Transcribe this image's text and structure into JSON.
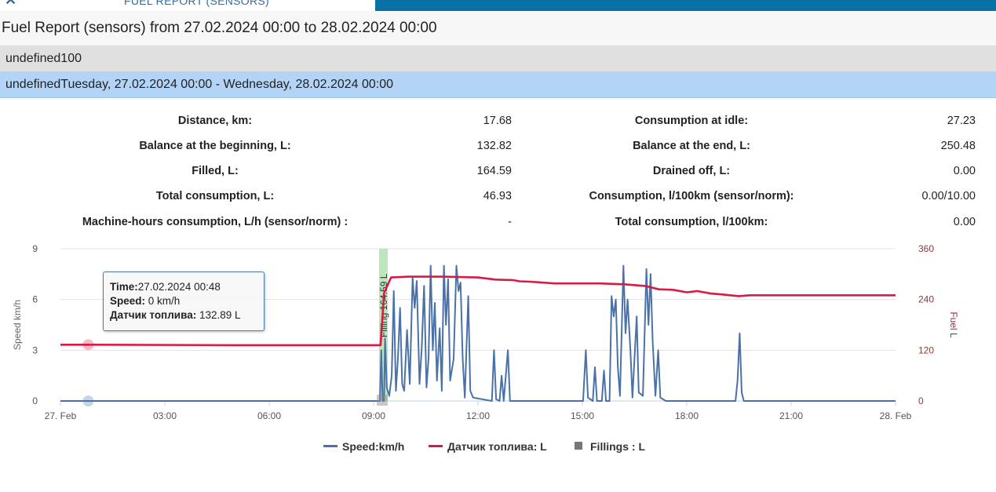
{
  "header": {
    "close_icon": "close-icon",
    "tab_title": "FUEL REPORT (SENSORS)",
    "accent_color": "#0b70a6"
  },
  "report": {
    "title": "Fuel Report (sensors) from 27.02.2024 00:00 to 28.02.2024 00:00",
    "group_row": "undefined100",
    "period_row": "undefinedTuesday, 27.02.2024 00:00 - Wednesday, 28.02.2024 00:00"
  },
  "stats": {
    "left": [
      {
        "label": "Distance, km:",
        "value": "17.68"
      },
      {
        "label": "Balance at the beginning, L:",
        "value": "132.82"
      },
      {
        "label": "Filled, L:",
        "value": "164.59"
      },
      {
        "label": "Total consumption, L:",
        "value": "46.93"
      },
      {
        "label": "Machine-hours consumption, L/h (sensor/norm) :",
        "value": "-"
      }
    ],
    "right": [
      {
        "label": "Consumption at idle:",
        "value": "27.23"
      },
      {
        "label": "Balance at the end, L:",
        "value": "250.48"
      },
      {
        "label": "Drained off, L:",
        "value": "0.00"
      },
      {
        "label": "Consumption, l/100km (sensor/norm):",
        "value": "0.00/10.00"
      },
      {
        "label": "Total consumption, l/100km:",
        "value": "0.00"
      }
    ]
  },
  "tooltip": {
    "time_label": "Time:",
    "time_value": "27.02.2024 00:48",
    "speed_label": "Speed:",
    "speed_value": " 0 km/h",
    "fuel_label": "Датчик топлива:",
    "fuel_value": " 132.89 L"
  },
  "chart_data": {
    "type": "line",
    "y_left_label": "Speed km/h",
    "y_right_label": "Fuel L",
    "y_left_ticks": [
      "0",
      "3",
      "6",
      "9"
    ],
    "y_left_range": [
      0,
      9
    ],
    "y_right_ticks": [
      "0",
      "120",
      "240",
      "360"
    ],
    "y_right_range": [
      0,
      360
    ],
    "x_range_hours": [
      0,
      24
    ],
    "x_ticks": [
      {
        "h": 0,
        "label": "27. Feb"
      },
      {
        "h": 3,
        "label": "03:00"
      },
      {
        "h": 6,
        "label": "06:00"
      },
      {
        "h": 9,
        "label": "09:00"
      },
      {
        "h": 12,
        "label": "12:00"
      },
      {
        "h": 15,
        "label": "15:00"
      },
      {
        "h": 18,
        "label": "18:00"
      },
      {
        "h": 21,
        "label": "21:00"
      },
      {
        "h": 24,
        "label": "28. Feb"
      }
    ],
    "grid": true,
    "legend_position": "bottom-center",
    "series": [
      {
        "name": "Speed:km/h",
        "color": "#4a72a8",
        "axis": "left",
        "points": [
          [
            0,
            0
          ],
          [
            9.18,
            0
          ],
          [
            9.22,
            3
          ],
          [
            9.26,
            0
          ],
          [
            9.3,
            0
          ],
          [
            9.33,
            3.7
          ],
          [
            9.38,
            0.8
          ],
          [
            9.45,
            0.3
          ],
          [
            9.52,
            1.5
          ],
          [
            9.58,
            6.5
          ],
          [
            9.64,
            0.6
          ],
          [
            9.7,
            2.5
          ],
          [
            9.76,
            5.5
          ],
          [
            9.82,
            1.0
          ],
          [
            9.88,
            0.6
          ],
          [
            9.96,
            4.2
          ],
          [
            10.04,
            1.0
          ],
          [
            10.12,
            7.3
          ],
          [
            10.18,
            5.5
          ],
          [
            10.24,
            7.1
          ],
          [
            10.32,
            1.0
          ],
          [
            10.38,
            3.0
          ],
          [
            10.45,
            6.8
          ],
          [
            10.52,
            0.8
          ],
          [
            10.58,
            2.5
          ],
          [
            10.64,
            8.0
          ],
          [
            10.7,
            3.0
          ],
          [
            10.76,
            5.8
          ],
          [
            10.82,
            1.2
          ],
          [
            10.9,
            4.3
          ],
          [
            10.96,
            0.6
          ],
          [
            11.02,
            8.0
          ],
          [
            11.08,
            4.5
          ],
          [
            11.14,
            7.2
          ],
          [
            11.2,
            1.2
          ],
          [
            11.3,
            2.5
          ],
          [
            11.38,
            8.0
          ],
          [
            11.44,
            6.5
          ],
          [
            11.5,
            7.0
          ],
          [
            11.56,
            2.5
          ],
          [
            11.62,
            0.2
          ],
          [
            11.72,
            6.2
          ],
          [
            11.78,
            0.6
          ],
          [
            11.86,
            0.2
          ],
          [
            12.4,
            0
          ],
          [
            12.46,
            3.0
          ],
          [
            12.52,
            0.1
          ],
          [
            12.62,
            0
          ],
          [
            12.68,
            1.5
          ],
          [
            12.74,
            0
          ],
          [
            12.86,
            3.0
          ],
          [
            12.92,
            0
          ],
          [
            13,
            0
          ],
          [
            15.02,
            0
          ],
          [
            15.1,
            3.0
          ],
          [
            15.16,
            0.2
          ],
          [
            15.3,
            0
          ],
          [
            15.36,
            2.0
          ],
          [
            15.42,
            0
          ],
          [
            15.56,
            0
          ],
          [
            15.62,
            1.8
          ],
          [
            15.68,
            0
          ],
          [
            15.78,
            0
          ],
          [
            15.84,
            6.2
          ],
          [
            15.9,
            5.0
          ],
          [
            15.96,
            6.0
          ],
          [
            16.02,
            2.0
          ],
          [
            16.08,
            0.3
          ],
          [
            16.18,
            8.0
          ],
          [
            16.24,
            4.0
          ],
          [
            16.3,
            6.0
          ],
          [
            16.38,
            3.0
          ],
          [
            16.44,
            0.2
          ],
          [
            16.56,
            5.0
          ],
          [
            16.62,
            0.5
          ],
          [
            16.74,
            0.3
          ],
          [
            16.84,
            7.8
          ],
          [
            16.9,
            4.5
          ],
          [
            16.96,
            7.5
          ],
          [
            17.02,
            3.5
          ],
          [
            17.1,
            0.3
          ],
          [
            17.18,
            3.0
          ],
          [
            17.24,
            0.2
          ],
          [
            17.4,
            0
          ],
          [
            19.4,
            0
          ],
          [
            19.46,
            1.2
          ],
          [
            19.52,
            4.0
          ],
          [
            19.58,
            0.5
          ],
          [
            19.64,
            0
          ],
          [
            24,
            0
          ]
        ]
      },
      {
        "name": "Датчик топлива: L",
        "color": "#d81b45",
        "axis": "right",
        "points": [
          [
            0,
            133
          ],
          [
            0.8,
            133
          ],
          [
            5,
            132
          ],
          [
            9.05,
            132
          ],
          [
            9.2,
            132
          ],
          [
            9.3,
            255
          ],
          [
            9.5,
            292
          ],
          [
            10,
            294
          ],
          [
            11,
            294
          ],
          [
            12,
            292
          ],
          [
            12.5,
            287
          ],
          [
            13,
            286
          ],
          [
            13.2,
            283
          ],
          [
            13.5,
            282
          ],
          [
            14.2,
            278
          ],
          [
            14.8,
            278
          ],
          [
            15.5,
            278
          ],
          [
            16.2,
            276
          ],
          [
            16.8,
            272
          ],
          [
            17.2,
            264
          ],
          [
            17.6,
            263
          ],
          [
            18.0,
            257
          ],
          [
            18.3,
            260
          ],
          [
            18.7,
            254
          ],
          [
            19.0,
            252
          ],
          [
            19.5,
            248
          ],
          [
            19.8,
            250
          ],
          [
            21,
            250
          ],
          [
            24,
            250
          ]
        ]
      }
    ],
    "fillings": {
      "name": "Fillings : L",
      "color": "#777777",
      "band_color": "#8fd58f",
      "at_hour": 9.18,
      "label": "Filling 164.59 L"
    },
    "hover_marker_hour": 0.8
  }
}
